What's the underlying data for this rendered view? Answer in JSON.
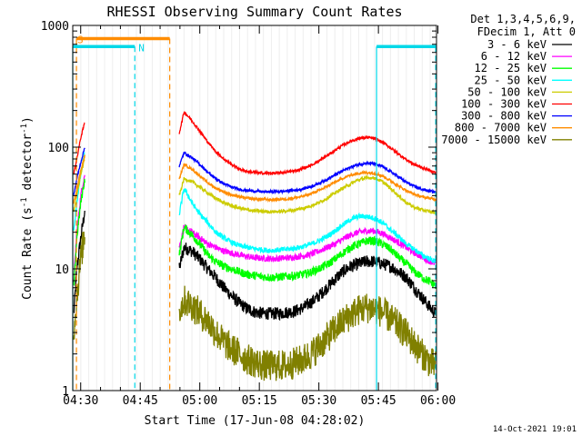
{
  "chart_data": {
    "type": "line",
    "title": "RHESSI Observing Summary Count Rates",
    "xlabel": "Start Time (17-Jun-08 04:28:02)",
    "ylabel_prefix": "Count Rate (s",
    "ylabel_sup1": "-1",
    "ylabel_mid": " detector",
    "ylabel_sup2": "-1",
    "ylabel_suffix": ")",
    "y_scale": "log",
    "ylim": [
      1,
      1000
    ],
    "xlim_minutes": [
      -0.03,
      91.6
    ],
    "x_ticks": [
      {
        "label": "04:30",
        "t": 1.97
      },
      {
        "label": "04:45",
        "t": 16.97
      },
      {
        "label": "05:00",
        "t": 31.97
      },
      {
        "label": "05:15",
        "t": 46.97
      },
      {
        "label": "05:30",
        "t": 61.97
      },
      {
        "label": "05:45",
        "t": 76.97
      },
      {
        "label": "06:00",
        "t": 91.97
      }
    ],
    "y_ticks": [
      {
        "label": "1",
        "v": 1
      },
      {
        "label": "10",
        "v": 10
      },
      {
        "label": "100",
        "v": 100
      },
      {
        "label": "1000",
        "v": 1000
      }
    ],
    "legend_header": [
      "Det 1,3,4,5,6,9,",
      "FDecim 1, Att 0"
    ],
    "time_grid_minutes": [
      0,
      2,
      4,
      6,
      8,
      10,
      12,
      14,
      16,
      18,
      20,
      22,
      24,
      26,
      28,
      30,
      32,
      34,
      36,
      38,
      40,
      42,
      44,
      46,
      48,
      50,
      52,
      54,
      56,
      58,
      60,
      62,
      64,
      66,
      68,
      70,
      72,
      74,
      76,
      78,
      80,
      82,
      84,
      86,
      88,
      90
    ],
    "series": [
      {
        "name": "3 - 6 keV",
        "color": "#000000",
        "noise": 0.12,
        "segments": [
          {
            "x": [
              0.2,
              1.0,
              2.0,
              3.0
            ],
            "y": [
              4.2,
              10,
              18,
              30
            ]
          },
          {
            "x": [
              26.8,
              28,
              30,
              32,
              34,
              36,
              38,
              40,
              42,
              44,
              46,
              48,
              50,
              52,
              54,
              56,
              58,
              60,
              62,
              64,
              66,
              68,
              70,
              72,
              74,
              76,
              78,
              80,
              82,
              84,
              86,
              88,
              90,
              91.4
            ],
            "y": [
              10,
              15,
              14,
              12,
              10,
              8.5,
              7,
              6,
              5.2,
              4.7,
              4.4,
              4.3,
              4.3,
              4.3,
              4.4,
              4.5,
              4.8,
              5.3,
              6,
              7,
              8.2,
              9.5,
              10.5,
              11,
              11.5,
              11.5,
              11,
              10.5,
              9.5,
              8.5,
              7,
              5.8,
              4.8,
              4.3
            ]
          }
        ]
      },
      {
        "name": "6 - 12 keV",
        "color": "#ff00ff",
        "noise": 0.06,
        "segments": [
          {
            "x": [
              0.2,
              1.0,
              2.0,
              3.0
            ],
            "y": [
              8,
              20,
              40,
              60
            ]
          },
          {
            "x": [
              26.8,
              28,
              30,
              32,
              34,
              36,
              38,
              40,
              42,
              44,
              46,
              48,
              50,
              52,
              54,
              56,
              58,
              60,
              62,
              64,
              66,
              68,
              70,
              72,
              74,
              76,
              78,
              80,
              82,
              84,
              86,
              88,
              90,
              91.4
            ],
            "y": [
              15,
              22,
              20,
              18,
              16,
              15,
              14,
              13.5,
              13,
              12.6,
              12.3,
              12.2,
              12.1,
              12.2,
              12.3,
              12.5,
              12.8,
              13.2,
              14,
              15,
              16,
              17.5,
              19,
              20,
              20.5,
              20.5,
              19.5,
              18,
              16.5,
              15,
              13.5,
              12.5,
              11.5,
              11
            ]
          }
        ]
      },
      {
        "name": "12 - 25 keV",
        "color": "#00ff00",
        "noise": 0.08,
        "segments": [
          {
            "x": [
              0.2,
              1.0,
              2.0,
              3.0
            ],
            "y": [
              7,
              18,
              35,
              55
            ]
          },
          {
            "x": [
              26.8,
              28,
              30,
              32,
              34,
              36,
              38,
              40,
              42,
              44,
              46,
              48,
              50,
              52,
              54,
              56,
              58,
              60,
              62,
              64,
              66,
              68,
              70,
              72,
              74,
              76,
              78,
              80,
              82,
              84,
              86,
              88,
              90,
              91.4
            ],
            "y": [
              13,
              22,
              19,
              16,
              13,
              11.5,
              10.5,
              10,
              9.4,
              9,
              8.8,
              8.6,
              8.5,
              8.6,
              8.7,
              8.8,
              9,
              9.4,
              10,
              10.8,
              12,
              13.5,
              15,
              16,
              17,
              17,
              16,
              14.5,
              12.5,
              11,
              9.5,
              8.5,
              7.8,
              7.3
            ]
          }
        ]
      },
      {
        "name": "25 - 50 keV",
        "color": "#00ffff",
        "noise": 0.05,
        "segments": [
          {
            "x": [
              0.2,
              1.0,
              2.0,
              3.0
            ],
            "y": [
              20,
              35,
              60,
              90
            ]
          },
          {
            "x": [
              26.8,
              28,
              30,
              32,
              34,
              36,
              38,
              40,
              42,
              44,
              46,
              48,
              50,
              52,
              54,
              56,
              58,
              60,
              62,
              64,
              66,
              68,
              70,
              72,
              74,
              76,
              78,
              80,
              82,
              84,
              86,
              88,
              90,
              91.4
            ],
            "y": [
              28,
              46,
              35,
              28,
              24,
              20,
              18,
              16.5,
              15.5,
              15,
              14.6,
              14.3,
              14.2,
              14.3,
              14.5,
              14.8,
              15.3,
              16,
              17,
              18.5,
              20.5,
              23,
              25.5,
              27,
              27,
              26,
              24,
              21,
              18.5,
              16,
              14.5,
              13,
              12,
              11.5
            ]
          }
        ]
      },
      {
        "name": "50 - 100 keV",
        "color": "#cccc00",
        "noise": 0.03,
        "segments": [
          {
            "x": [
              0.2,
              1.0,
              2.0,
              3.0
            ],
            "y": [
              30,
              40,
              60,
              80
            ]
          },
          {
            "x": [
              26.8,
              28,
              30,
              32,
              34,
              36,
              38,
              40,
              42,
              44,
              46,
              48,
              50,
              52,
              54,
              56,
              58,
              60,
              62,
              64,
              66,
              68,
              70,
              72,
              74,
              76,
              78,
              80,
              82,
              84,
              86,
              88,
              90,
              91.4
            ],
            "y": [
              40,
              55,
              52,
              47,
              42,
              38,
              35,
              33,
              31.5,
              30.5,
              30,
              29.6,
              29.5,
              29.6,
              30,
              30.5,
              31.5,
              33,
              35,
              38,
              42,
              46,
              50,
              54,
              56,
              56,
              52,
              46,
              40,
              35,
              32,
              30.5,
              29.5,
              29
            ]
          }
        ]
      },
      {
        "name": "100 - 300 keV",
        "color": "#ff0000",
        "noise": 0.025,
        "segments": [
          {
            "x": [
              0.2,
              1.0,
              2.0,
              3.0
            ],
            "y": [
              60,
              80,
              120,
              160
            ]
          },
          {
            "x": [
              26.8,
              28,
              30,
              32,
              34,
              36,
              38,
              40,
              42,
              44,
              46,
              48,
              50,
              52,
              54,
              56,
              58,
              60,
              62,
              64,
              66,
              68,
              70,
              72,
              74,
              76,
              78,
              80,
              82,
              84,
              86,
              88,
              90,
              91.4
            ],
            "y": [
              130,
              195,
              165,
              135,
              110,
              92,
              80,
              72,
              66,
              63,
              62,
              61,
              61,
              61.5,
              62.5,
              64,
              67,
              71,
              77,
              85,
              94,
              104,
              112,
              118,
              120,
              118,
              110,
              99,
              88,
              79,
              72,
              68,
              64,
              62
            ]
          }
        ]
      },
      {
        "name": "300 - 800 keV",
        "color": "#0000ff",
        "noise": 0.025,
        "segments": [
          {
            "x": [
              0.2,
              1.0,
              2.0,
              3.0
            ],
            "y": [
              40,
              55,
              75,
              100
            ]
          },
          {
            "x": [
              26.8,
              28,
              30,
              32,
              34,
              36,
              38,
              40,
              42,
              44,
              46,
              48,
              50,
              52,
              54,
              56,
              58,
              60,
              62,
              64,
              66,
              68,
              70,
              72,
              74,
              76,
              78,
              80,
              82,
              84,
              86,
              88,
              90,
              91.4
            ],
            "y": [
              70,
              90,
              82,
              72,
              62,
              55,
              50,
              47,
              45,
              44,
              43.5,
              43,
              43,
              43.2,
              43.6,
              44.3,
              45.5,
              47.5,
              50.5,
              54.5,
              59,
              64,
              68.5,
              72,
              74,
              73,
              69,
              63,
              57,
              51.5,
              47.5,
              45,
              43.5,
              42.5
            ]
          }
        ]
      },
      {
        "name": "800 - 7000 keV",
        "color": "#ff8c00",
        "noise": 0.025,
        "segments": [
          {
            "x": [
              0.2,
              1.0,
              2.0,
              3.0
            ],
            "y": [
              35,
              45,
              65,
              85
            ]
          },
          {
            "x": [
              26.8,
              28,
              30,
              32,
              34,
              36,
              38,
              40,
              42,
              44,
              46,
              48,
              50,
              52,
              54,
              56,
              58,
              60,
              62,
              64,
              66,
              68,
              70,
              72,
              74,
              76,
              78,
              80,
              82,
              84,
              86,
              88,
              90,
              91.4
            ],
            "y": [
              55,
              72,
              66,
              58,
              51,
              46,
              43,
              40.5,
              39,
              38,
              37.5,
              37.2,
              37,
              37.2,
              37.6,
              38.3,
              39.5,
              41.5,
              44,
              47.5,
              51.5,
              55.5,
              59,
              61,
              62,
              61,
              58,
              53,
              48,
              44,
              41,
              39,
              38,
              37
            ]
          }
        ]
      },
      {
        "name": "7000 - 15000 keV",
        "color": "#808000",
        "noise": 0.3,
        "segments": [
          {
            "x": [
              0.2,
              1.0,
              2.0,
              3.0
            ],
            "y": [
              3,
              6,
              12,
              20
            ]
          },
          {
            "x": [
              26.8,
              28,
              30,
              32,
              34,
              36,
              38,
              40,
              42,
              44,
              46,
              48,
              50,
              52,
              54,
              56,
              58,
              60,
              62,
              64,
              66,
              68,
              70,
              72,
              74,
              76,
              78,
              80,
              82,
              84,
              86,
              88,
              90,
              91.4
            ],
            "y": [
              4.5,
              5.5,
              5,
              4.3,
              3.7,
              3,
              2.5,
              2.2,
              2,
              1.8,
              1.7,
              1.6,
              1.6,
              1.6,
              1.6,
              1.7,
              1.8,
              2,
              2.3,
              2.7,
              3.2,
              3.7,
              4.2,
              4.6,
              4.8,
              4.7,
              4.4,
              3.9,
              3.4,
              2.9,
              2.4,
              2,
              1.7,
              1.6
            ]
          }
        ]
      }
    ],
    "markers": {
      "saa_label": "S",
      "night_label": "N",
      "saa_color": "#ff8c00",
      "night_color": "#00d8e8",
      "saa_start_min": 0.9,
      "saa_end_min": 24.4,
      "night_start_min": -0.03,
      "night_end_min": 15.6,
      "night2_start_min": 76.5,
      "night2_end_min": 91.6,
      "bar_value": 780,
      "night_bar_value": 670,
      "saa_lines_min": [
        0.9,
        24.4
      ],
      "night_lines_min": [
        15.6,
        91.4
      ],
      "night_solid_min": [
        -0.03,
        76.5
      ]
    }
  },
  "timestamp": "14-Oct-2021 19:01"
}
